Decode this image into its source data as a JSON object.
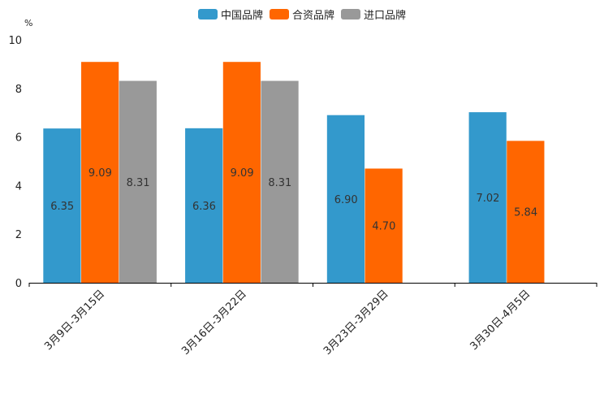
{
  "chart_data": {
    "type": "bar",
    "unit": "%",
    "categories": [
      "3月9日-3月15日",
      "3月16日-3月22日",
      "3月23日-3月29日",
      "3月30日-4月5日"
    ],
    "series": [
      {
        "name": "中国品牌",
        "color": "#3399cc",
        "values": [
          6.35,
          6.36,
          6.9,
          7.02
        ],
        "labels": [
          "6.35",
          "6.36",
          "6.90",
          "7.02"
        ]
      },
      {
        "name": "合资品牌",
        "color": "#ff6600",
        "values": [
          9.09,
          9.09,
          4.7,
          5.84
        ],
        "labels": [
          "9.09",
          "9.09",
          "4.70",
          "5.84"
        ]
      },
      {
        "name": "进口品牌",
        "color": "#999999",
        "values": [
          8.31,
          8.31,
          null,
          null
        ],
        "labels": [
          "8.31",
          "8.31",
          null,
          null
        ]
      }
    ],
    "ylim": [
      0,
      10
    ],
    "yticks": [
      "0",
      "2",
      "4",
      "6",
      "8",
      "10"
    ],
    "legend_position": "top-center",
    "grid": false
  }
}
